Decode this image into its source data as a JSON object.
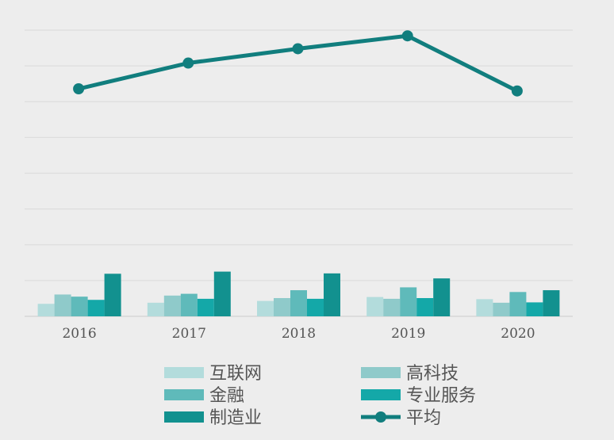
{
  "chart_data": {
    "type": "bar",
    "categories": [
      "2016",
      "2017",
      "2018",
      "2019",
      "2020"
    ],
    "ylim": [
      0,
      8
    ],
    "grid": true,
    "legend_position": "bottom",
    "series": [
      {
        "name": "互联网",
        "type": "bar",
        "color": "#b3dcdc",
        "values": [
          0.35,
          0.38,
          0.43,
          0.54,
          0.48
        ]
      },
      {
        "name": "高科技",
        "type": "bar",
        "color": "#8fcaca",
        "values": [
          0.61,
          0.58,
          0.51,
          0.49,
          0.38
        ]
      },
      {
        "name": "金融",
        "type": "bar",
        "color": "#5fbaba",
        "values": [
          0.55,
          0.63,
          0.73,
          0.81,
          0.68
        ]
      },
      {
        "name": "专业服务",
        "type": "bar",
        "color": "#14a8a8",
        "values": [
          0.46,
          0.49,
          0.49,
          0.51,
          0.39
        ]
      },
      {
        "name": "制造业",
        "type": "bar",
        "color": "#12918f",
        "values": [
          1.19,
          1.25,
          1.2,
          1.06,
          0.73
        ]
      },
      {
        "name": "平均",
        "type": "line",
        "color": "#117e7e",
        "values": [
          6.36,
          7.08,
          7.48,
          7.84,
          6.3
        ]
      }
    ]
  }
}
